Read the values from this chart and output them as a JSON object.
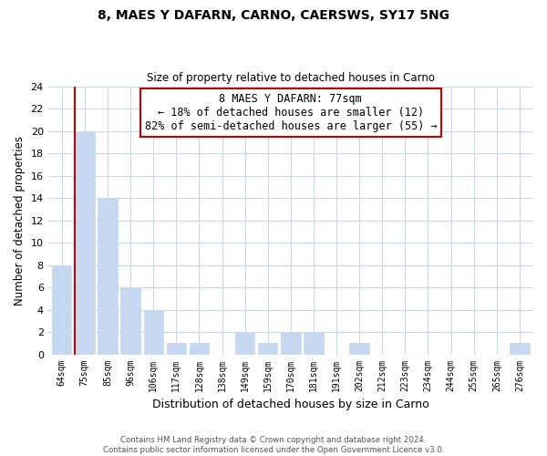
{
  "title": "8, MAES Y DAFARN, CARNO, CAERSWS, SY17 5NG",
  "subtitle": "Size of property relative to detached houses in Carno",
  "xlabel": "Distribution of detached houses by size in Carno",
  "ylabel": "Number of detached properties",
  "bar_labels": [
    "64sqm",
    "75sqm",
    "85sqm",
    "96sqm",
    "106sqm",
    "117sqm",
    "128sqm",
    "138sqm",
    "149sqm",
    "159sqm",
    "170sqm",
    "181sqm",
    "191sqm",
    "202sqm",
    "212sqm",
    "223sqm",
    "234sqm",
    "244sqm",
    "255sqm",
    "265sqm",
    "276sqm"
  ],
  "bar_values": [
    8,
    20,
    14,
    6,
    4,
    1,
    1,
    0,
    2,
    1,
    2,
    2,
    0,
    1,
    0,
    0,
    0,
    0,
    0,
    0,
    1
  ],
  "bar_color": "#c5d8f0",
  "subject_bar_index": 1,
  "subject_line_color": "#cc0000",
  "ylim": [
    0,
    24
  ],
  "yticks": [
    0,
    2,
    4,
    6,
    8,
    10,
    12,
    14,
    16,
    18,
    20,
    22,
    24
  ],
  "annotation_title": "8 MAES Y DAFARN: 77sqm",
  "annotation_line1": "← 18% of detached houses are smaller (12)",
  "annotation_line2": "82% of semi-detached houses are larger (55) →",
  "annotation_box_color": "#ffffff",
  "annotation_box_edge": "#cc0000",
  "grid_color": "#c8d8e8",
  "background_color": "#ffffff",
  "footer_line1": "Contains HM Land Registry data © Crown copyright and database right 2024.",
  "footer_line2": "Contains public sector information licensed under the Open Government Licence v3.0."
}
